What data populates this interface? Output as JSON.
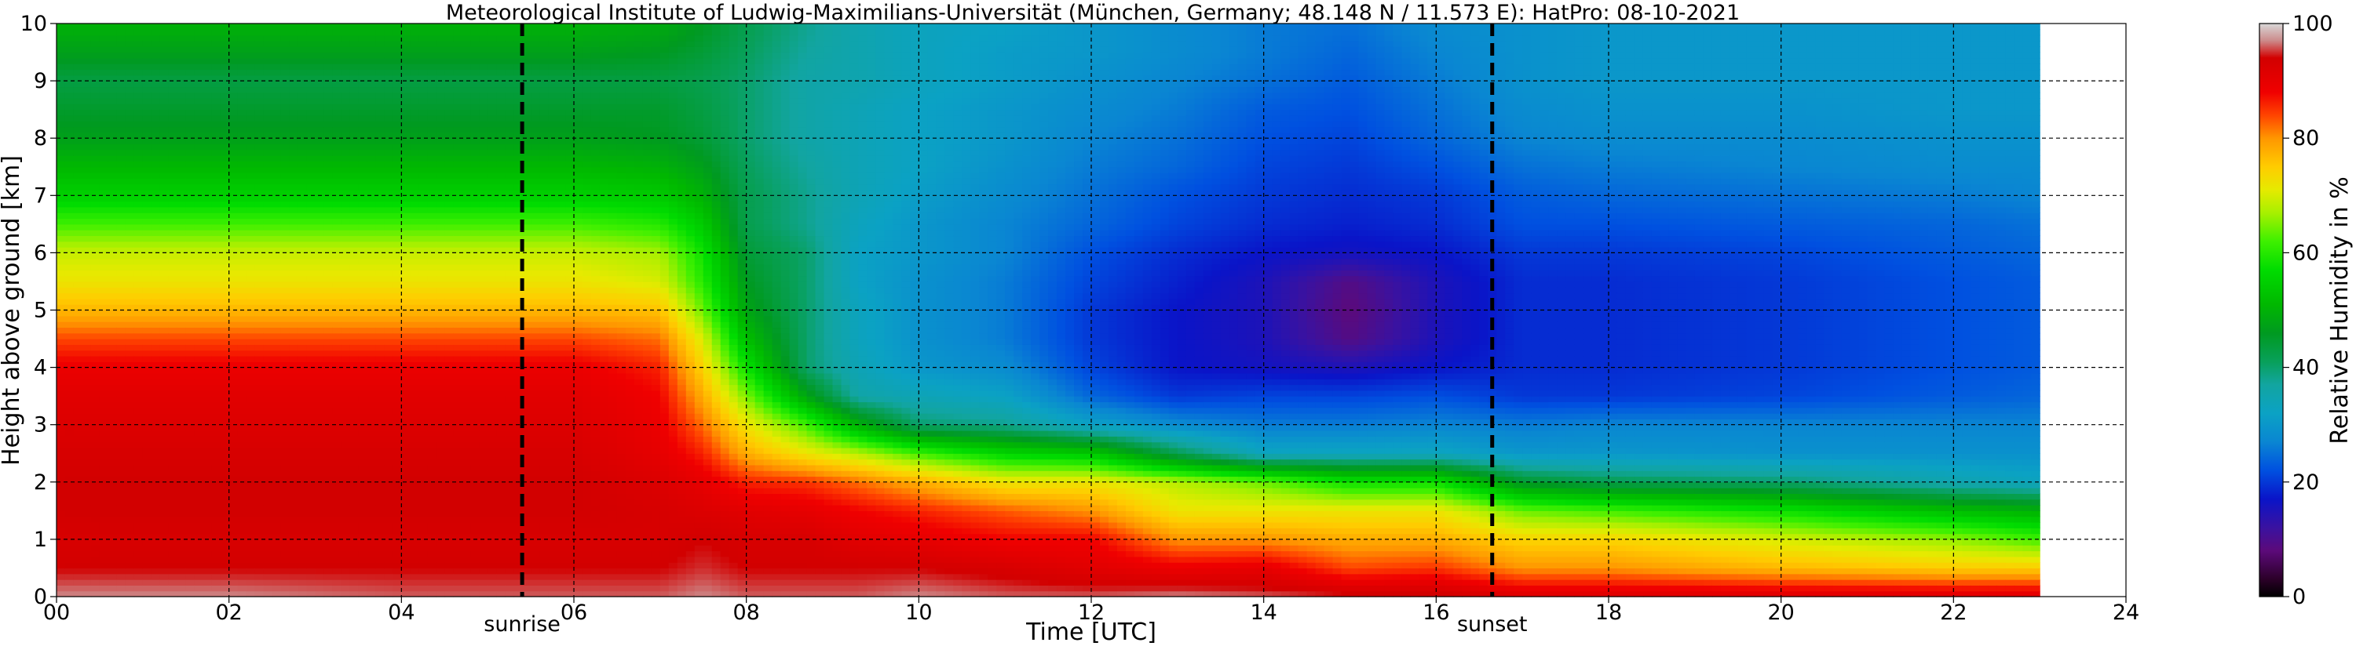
{
  "chart_data": {
    "type": "heatmap",
    "title": "Meteorological Institute of Ludwig-Maximilians-Universität (München, Germany; 48.148 N / 11.573 E):    HatPro: 08-10-2021",
    "xlabel": "Time [UTC]",
    "ylabel": "Height above ground [km]",
    "colorbar_label": "Relative Humidity in %",
    "xlim": [
      0,
      24
    ],
    "ylim": [
      0,
      10
    ],
    "data_end_time": 23,
    "xticks": [
      "00",
      "02",
      "04",
      "06",
      "08",
      "10",
      "12",
      "14",
      "16",
      "18",
      "20",
      "22",
      "24"
    ],
    "yticks": [
      "0",
      "1",
      "2",
      "3",
      "4",
      "5",
      "6",
      "7",
      "8",
      "9",
      "10"
    ],
    "colorbar_ticks": [
      "0",
      "20",
      "40",
      "60",
      "80",
      "100"
    ],
    "colorbar_range": [
      0,
      100
    ],
    "grid": true,
    "events": [
      {
        "label": "sunrise",
        "time": 5.4
      },
      {
        "label": "sunset",
        "time": 16.65
      }
    ],
    "time_points": [
      0,
      2,
      4,
      6,
      7,
      7.5,
      8,
      8.7,
      9.3,
      10,
      11,
      12,
      13,
      14,
      15,
      16,
      17,
      18,
      20,
      22,
      23
    ],
    "height_levels_km": [
      0,
      0.5,
      1,
      1.5,
      2,
      2.5,
      3,
      3.5,
      4,
      4.5,
      5,
      5.5,
      6,
      6.5,
      7,
      7.5,
      8,
      8.5,
      9,
      9.5,
      10
    ],
    "relative_humidity_percent": [
      [
        97,
        97,
        96,
        96,
        96,
        97,
        96,
        96,
        96,
        97,
        96,
        96,
        97,
        96,
        95,
        95,
        92,
        92,
        92,
        92,
        92
      ],
      [
        94,
        94,
        94,
        94,
        94,
        95,
        94,
        94,
        94,
        94,
        93,
        91,
        89,
        90,
        84,
        85,
        80,
        80,
        77,
        75,
        75
      ],
      [
        93,
        93,
        93,
        93,
        93,
        94,
        93,
        93,
        91,
        90,
        88,
        88,
        80,
        80,
        78,
        78,
        74,
        74,
        70,
        66,
        62
      ],
      [
        94,
        94,
        94,
        94,
        93,
        92,
        91,
        90,
        88,
        86,
        83,
        80,
        72,
        72,
        72,
        72,
        64,
        62,
        58,
        52,
        50
      ],
      [
        94,
        94,
        94,
        94,
        92,
        90,
        86,
        85,
        82,
        78,
        72,
        72,
        68,
        64,
        58,
        58,
        45,
        42,
        40,
        35,
        33
      ],
      [
        93,
        93,
        93,
        93,
        90,
        86,
        78,
        72,
        68,
        62,
        56,
        54,
        42,
        33,
        33,
        33,
        30,
        30,
        29,
        29,
        29
      ],
      [
        92,
        92,
        92,
        92,
        89,
        82,
        72,
        62,
        50,
        40,
        38,
        32,
        28,
        26,
        26,
        27,
        26,
        27,
        27,
        27,
        27
      ],
      [
        91,
        91,
        91,
        91,
        88,
        78,
        65,
        48,
        36,
        34,
        32,
        24,
        20,
        21,
        21,
        22,
        20,
        20,
        21,
        23,
        24
      ],
      [
        89,
        89,
        89,
        89,
        86,
        74,
        58,
        40,
        34,
        30,
        28,
        21,
        17,
        16,
        15,
        17,
        19,
        19,
        20,
        22,
        23
      ],
      [
        84,
        84,
        84,
        84,
        82,
        70,
        52,
        40,
        33,
        29,
        26,
        20,
        17,
        15,
        9,
        15,
        19,
        19,
        20,
        22,
        23
      ],
      [
        77,
        77,
        77,
        77,
        76,
        64,
        48,
        40,
        33,
        29,
        26,
        20,
        17,
        15,
        8,
        15,
        19,
        19,
        20,
        22,
        23
      ],
      [
        72,
        72,
        72,
        72,
        70,
        60,
        46,
        40,
        32,
        29,
        26,
        21,
        18,
        15,
        9,
        15,
        19,
        19,
        20,
        22,
        23
      ],
      [
        69,
        69,
        69,
        69,
        67,
        58,
        44,
        40,
        32,
        30,
        27,
        22,
        19,
        17,
        16,
        17,
        20,
        20,
        21,
        23,
        24
      ],
      [
        62,
        62,
        62,
        62,
        60,
        54,
        42,
        38,
        33,
        30,
        27,
        24,
        21,
        19,
        18,
        19,
        22,
        22,
        23,
        24,
        25
      ],
      [
        55,
        55,
        55,
        55,
        54,
        50,
        42,
        38,
        34,
        31,
        28,
        25,
        22,
        20,
        19,
        20,
        23,
        24,
        25,
        26,
        27
      ],
      [
        51,
        51,
        51,
        51,
        50,
        47,
        41,
        37,
        34,
        32,
        29,
        26,
        24,
        21,
        20,
        22,
        25,
        26,
        27,
        28,
        28
      ],
      [
        47,
        47,
        47,
        47,
        46,
        44,
        40,
        36,
        34,
        32,
        30,
        27,
        25,
        22,
        21,
        24,
        27,
        28,
        28,
        29,
        29
      ],
      [
        45,
        45,
        45,
        45,
        45,
        43,
        40,
        36,
        34,
        32,
        30,
        28,
        26,
        23,
        22,
        25,
        28,
        29,
        29,
        30,
        30
      ],
      [
        43,
        43,
        43,
        43,
        43,
        42,
        40,
        36,
        35,
        33,
        31,
        29,
        27,
        25,
        23,
        26,
        29,
        30,
        30,
        30,
        30
      ],
      [
        47,
        47,
        47,
        47,
        46,
        44,
        41,
        37,
        35,
        33,
        31,
        30,
        28,
        26,
        24,
        27,
        29,
        30,
        30,
        30,
        30
      ],
      [
        50,
        50,
        50,
        50,
        49,
        46,
        42,
        38,
        35,
        33,
        32,
        30,
        28,
        26,
        25,
        28,
        29,
        30,
        30,
        30,
        30
      ]
    ]
  }
}
